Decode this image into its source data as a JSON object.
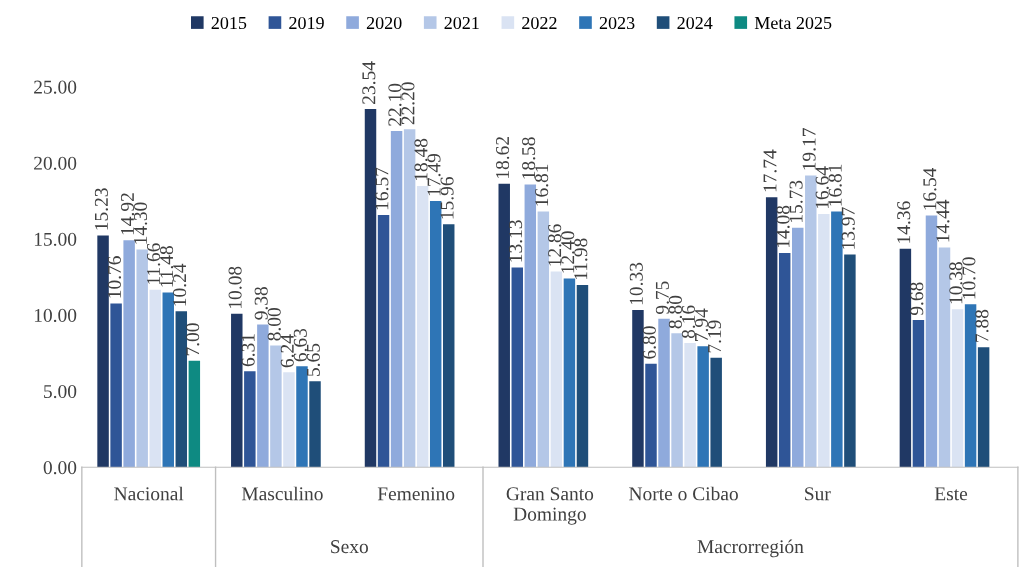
{
  "chart_data": {
    "type": "bar",
    "categories": [
      "Nacional",
      "Masculino",
      "Femenino",
      "Gran Santo\nDomingo",
      "Norte o Cibao",
      "Sur",
      "Este"
    ],
    "series": [
      {
        "name": "2015",
        "color": "#203864",
        "values": [
          15.23,
          10.08,
          23.54,
          18.62,
          10.33,
          17.74,
          14.36
        ],
        "value_labels": [
          "15.23",
          "10.08",
          "23.54",
          "18.62",
          "10.33",
          "17.74",
          "14.36"
        ]
      },
      {
        "name": "2019",
        "color": "#2f5597",
        "values": [
          10.76,
          6.31,
          16.57,
          13.13,
          6.8,
          14.08,
          9.68
        ],
        "value_labels": [
          "10.76",
          "6.31",
          "16.57",
          "13.13",
          "6.80",
          "14.08",
          "9.68"
        ]
      },
      {
        "name": "2020",
        "color": "#8faadc",
        "values": [
          14.92,
          9.38,
          22.1,
          18.58,
          9.75,
          15.73,
          16.54
        ],
        "value_labels": [
          "14.92",
          "9.38",
          "22.10",
          "18.58",
          "9.75",
          "15.73",
          "16.54"
        ]
      },
      {
        "name": "2021",
        "color": "#b4c7e7",
        "values": [
          14.3,
          8.0,
          22.2,
          16.81,
          8.8,
          19.17,
          14.44
        ],
        "value_labels": [
          "14.30",
          "8.00",
          "22.20",
          "16.81",
          "8.80",
          "19.17",
          "14.44"
        ]
      },
      {
        "name": "2022",
        "color": "#dae3f3",
        "values": [
          11.66,
          6.24,
          18.48,
          12.86,
          8.16,
          16.64,
          10.38
        ],
        "value_labels": [
          "11.66",
          "6.24",
          "18.48",
          "12.86",
          "8.16",
          "16.64",
          "10.38"
        ]
      },
      {
        "name": "2023",
        "color": "#2e75b6",
        "values": [
          11.48,
          6.63,
          17.49,
          12.4,
          7.94,
          16.81,
          10.7
        ],
        "value_labels": [
          "11.48",
          "6.63",
          "17.49",
          "12.40",
          "7.94",
          "16.81",
          "10.70"
        ]
      },
      {
        "name": "2024",
        "color": "#1f4e79",
        "values": [
          10.24,
          5.65,
          15.96,
          11.98,
          7.19,
          13.97,
          7.88
        ],
        "value_labels": [
          "10.24",
          "5.65",
          "15.96",
          "11.98",
          "7.19",
          "13.97",
          "7.88"
        ]
      },
      {
        "name": "Meta 2025",
        "color": "#0e8a82",
        "values": [
          7.0,
          null,
          null,
          null,
          null,
          null,
          null
        ],
        "value_labels": [
          "7.00",
          null,
          null,
          null,
          null,
          null,
          null
        ]
      }
    ],
    "ylim": [
      0,
      25
    ],
    "yticks": [
      {
        "value": 0,
        "label": "0.00"
      },
      {
        "value": 5,
        "label": "5.00"
      },
      {
        "value": 10,
        "label": "10.00"
      },
      {
        "value": 15,
        "label": "15.00"
      },
      {
        "value": 20,
        "label": "20.00"
      },
      {
        "value": 25,
        "label": "25.00"
      }
    ],
    "grid": false,
    "legend": "top",
    "annotations": [
      "Sexo",
      "Macrorregión"
    ]
  }
}
